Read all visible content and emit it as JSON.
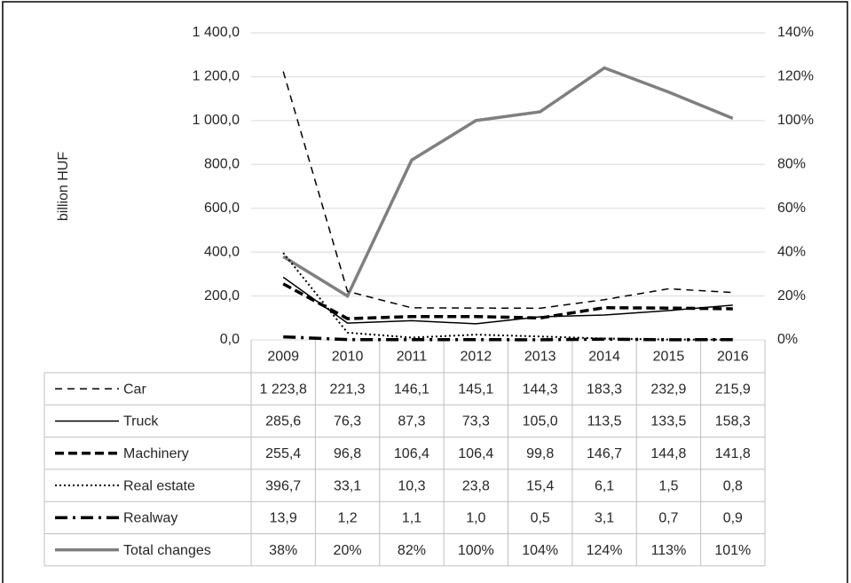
{
  "chart_data": {
    "type": "line",
    "y_label": "billion HUF",
    "categories": [
      "2009",
      "2010",
      "2011",
      "2012",
      "2013",
      "2014",
      "2015",
      "2016"
    ],
    "ylim": [
      0,
      1400
    ],
    "yticks": [
      {
        "value": 0,
        "label": "0,0"
      },
      {
        "value": 200,
        "label": "200,0"
      },
      {
        "value": 400,
        "label": "400,0"
      },
      {
        "value": 600,
        "label": "600,0"
      },
      {
        "value": 800,
        "label": "800,0"
      },
      {
        "value": 1000,
        "label": "1 000,0"
      },
      {
        "value": 1200,
        "label": "1 200,0"
      },
      {
        "value": 1400,
        "label": "1 400,0"
      }
    ],
    "y2lim": [
      0,
      140
    ],
    "y2ticks": [
      {
        "value": 0,
        "label": "0%"
      },
      {
        "value": 20,
        "label": "20%"
      },
      {
        "value": 40,
        "label": "40%"
      },
      {
        "value": 60,
        "label": "60%"
      },
      {
        "value": 80,
        "label": "80%"
      },
      {
        "value": 100,
        "label": "100%"
      },
      {
        "value": 120,
        "label": "120%"
      },
      {
        "value": 140,
        "label": "140%"
      }
    ],
    "grid": true,
    "series": [
      {
        "name": "Car",
        "color": "#000000",
        "width": 1.5,
        "dash": "8,6",
        "values": [
          1223.8,
          221.3,
          146.1,
          145.1,
          144.3,
          183.3,
          232.9,
          215.9
        ],
        "value_labels": [
          "1 223,8",
          "221,3",
          "146,1",
          "145,1",
          "144,3",
          "183,3",
          "232,9",
          "215,9"
        ]
      },
      {
        "name": "Truck",
        "color": "#000000",
        "width": 1.5,
        "dash": "none",
        "values": [
          285.6,
          76.3,
          87.3,
          73.3,
          105.0,
          113.5,
          133.5,
          158.3
        ],
        "value_labels": [
          "285,6",
          "76,3",
          "87,3",
          "73,3",
          "105,0",
          "113,5",
          "133,5",
          "158,3"
        ]
      },
      {
        "name": "Machinery",
        "color": "#000000",
        "width": 3.5,
        "dash": "10,5",
        "values": [
          255.4,
          96.8,
          106.4,
          106.4,
          99.8,
          146.7,
          144.8,
          141.8
        ],
        "value_labels": [
          "255,4",
          "96,8",
          "106,4",
          "106,4",
          "99,8",
          "146,7",
          "144,8",
          "141,8"
        ]
      },
      {
        "name": "Real estate",
        "color": "#000000",
        "width": 2,
        "dash": "2,3",
        "values": [
          396.7,
          33.1,
          10.3,
          23.8,
          15.4,
          6.1,
          1.5,
          0.8
        ],
        "value_labels": [
          "396,7",
          "33,1",
          "10,3",
          "23,8",
          "15,4",
          "6,1",
          "1,5",
          "0,8"
        ]
      },
      {
        "name": "Realway",
        "color": "#000000",
        "width": 3.5,
        "dash": "14,6,3,6",
        "values": [
          13.9,
          1.2,
          1.1,
          1.0,
          0.5,
          3.1,
          0.7,
          0.9
        ],
        "value_labels": [
          "13,9",
          "1,2",
          "1,1",
          "1,0",
          "0,5",
          "3,1",
          "0,7",
          "0,9"
        ]
      },
      {
        "name": "Total changes",
        "color": "#7f7f7f",
        "width": 3.5,
        "dash": "none",
        "axis": "y2",
        "values": [
          38,
          20,
          82,
          100,
          104,
          124,
          113,
          101
        ],
        "value_labels": [
          "38%",
          "20%",
          "82%",
          "100%",
          "104%",
          "124%",
          "113%",
          "101%"
        ]
      }
    ]
  }
}
